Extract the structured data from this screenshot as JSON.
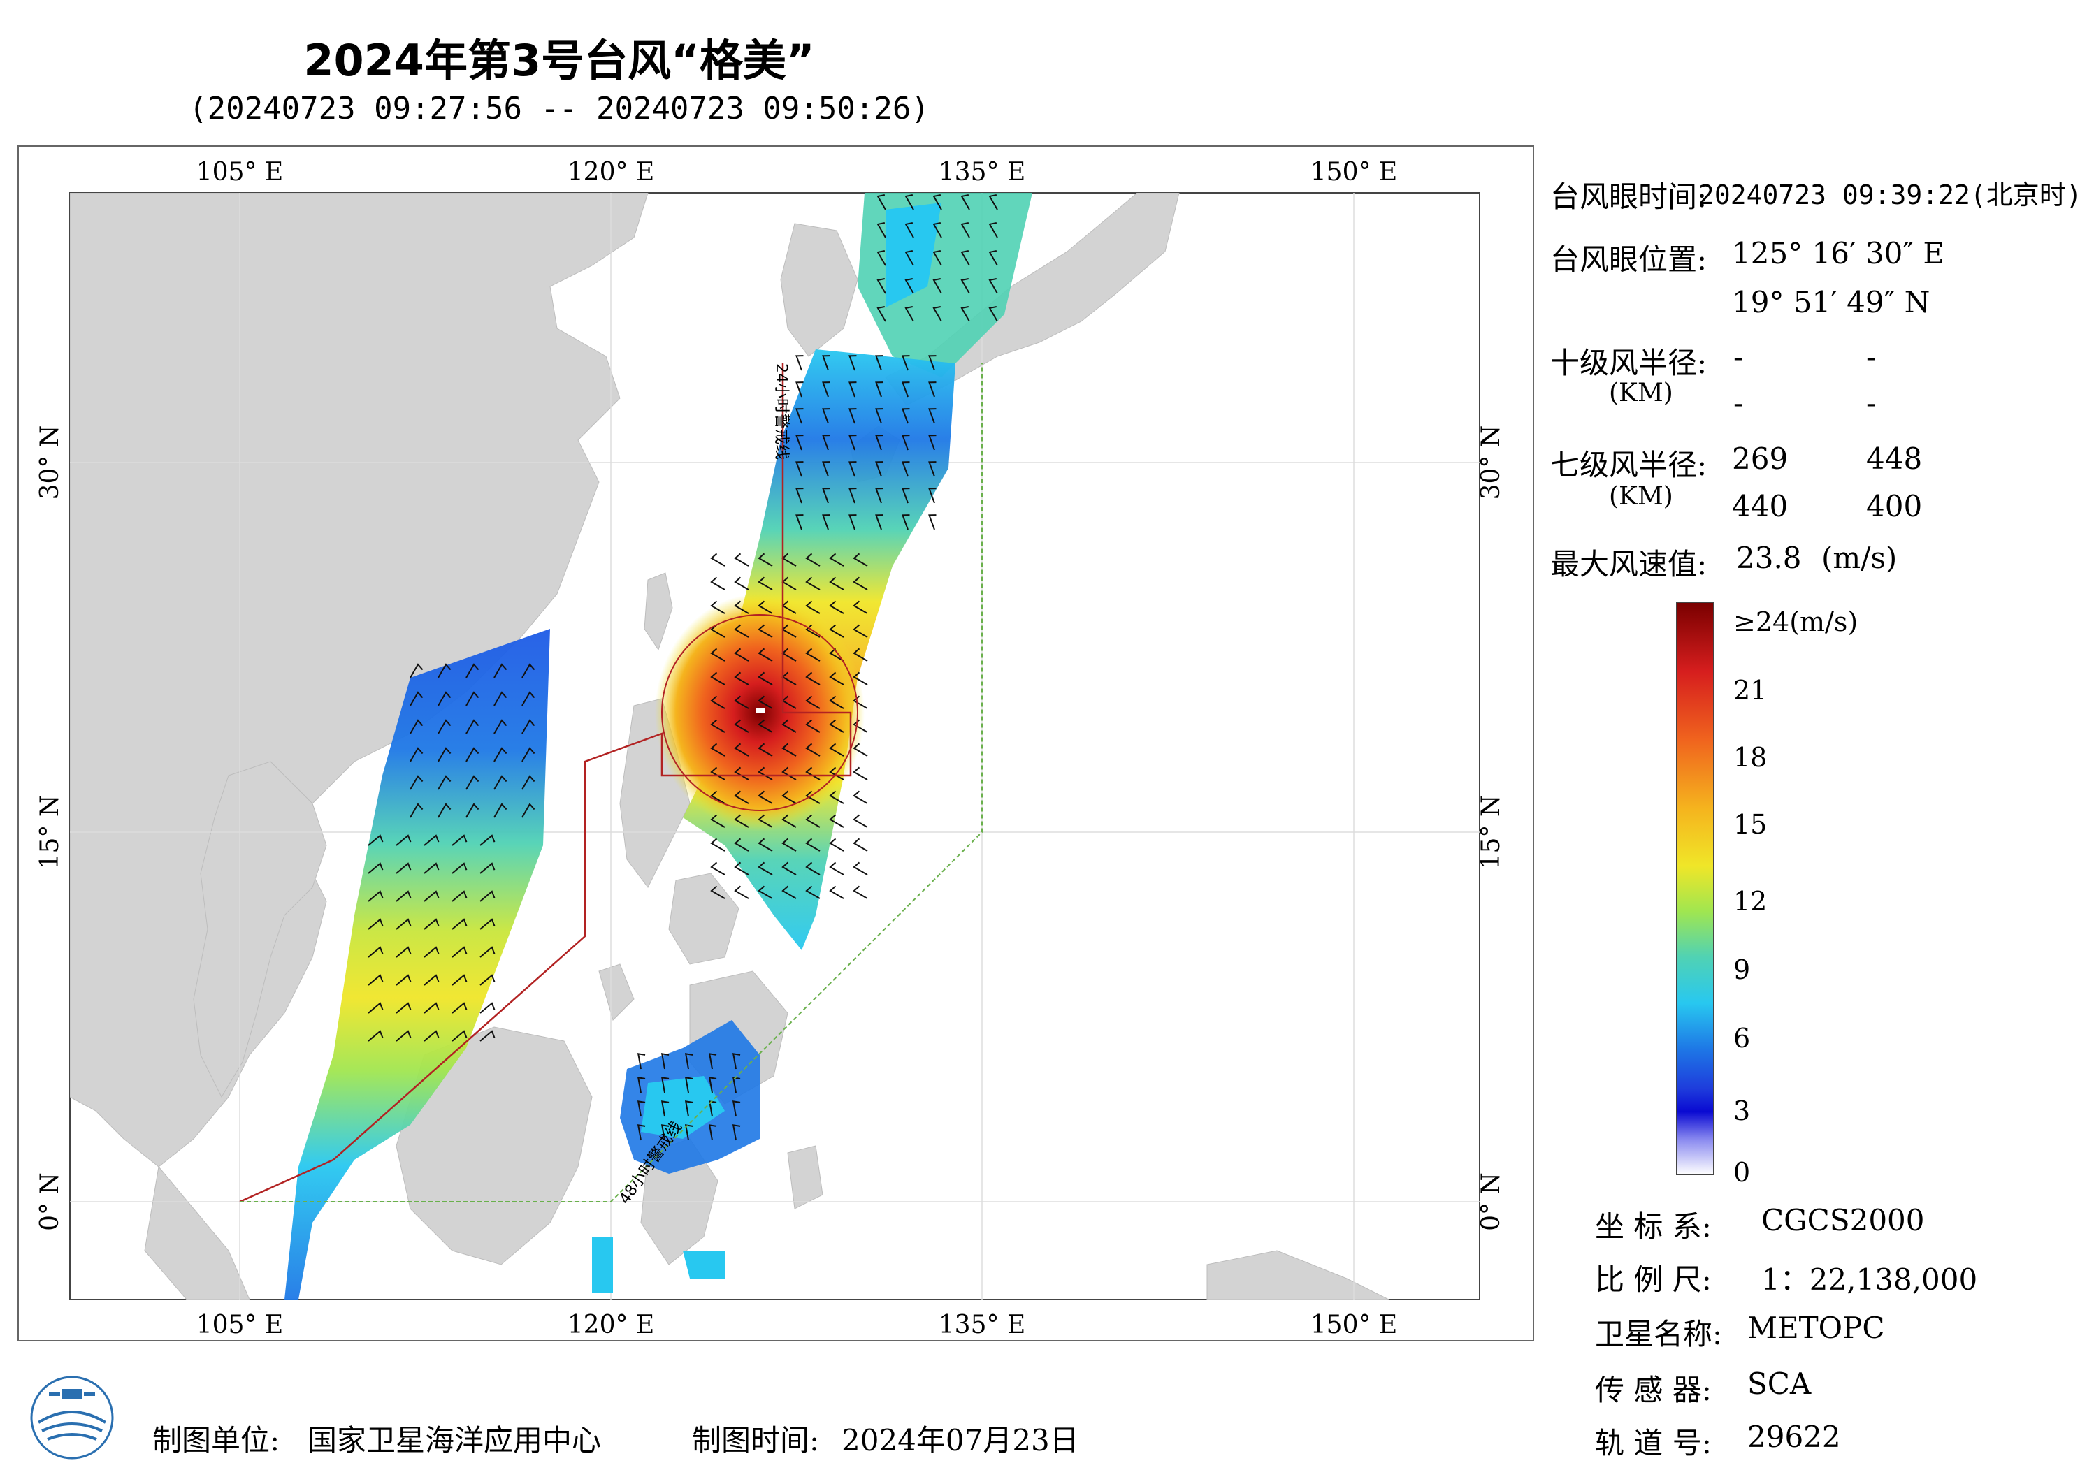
{
  "header": {
    "title": "2024年第3号台风“格美”",
    "subtitle": "(20240723 09:27:56 -- 20240723 09:50:26)"
  },
  "map": {
    "top_lon_labels": [
      "105° E",
      "120° E",
      "135° E",
      "150° E"
    ],
    "bottom_lon_labels": [
      "105° E",
      "120° E",
      "135° E",
      "150° E"
    ],
    "left_lat_labels": [
      "30° N",
      "15° N",
      "0° N"
    ],
    "right_lat_labels": [
      "30° N",
      "15° N",
      "0° N"
    ],
    "warning_line_24h": "24小时警戒线",
    "warning_line_48h": "48小时警戒线",
    "colors": {
      "land": "#d3d3d3",
      "sea": "#ffffff",
      "warning_24h": "#b22222",
      "warning_48h": "#6ab04c"
    }
  },
  "info_panel": {
    "eye_time_label": "台风眼时间:",
    "eye_time_value": "20240723 09:39:22(北京时)",
    "eye_position_label": "台风眼位置:",
    "eye_lon": "125° 16′ 30″ E",
    "eye_lat": "19° 51′ 49″ N",
    "r10_label": "十级风半径:",
    "km_label": "(KM)",
    "r10_values": [
      "-",
      "-",
      "-",
      "-"
    ],
    "r7_label": "七级风半径:",
    "r7_values": [
      "269",
      "448",
      "440",
      "400"
    ],
    "max_wind_label": "最大风速值:",
    "max_wind_value": "23.8",
    "max_wind_unit": "(m/s)"
  },
  "colorbar": {
    "labels": [
      "≥24(m/s)",
      "21",
      "18",
      "15",
      "12",
      "9",
      "6",
      "3",
      "0"
    ],
    "colors": [
      "#7a0000",
      "#d61e1e",
      "#f0641e",
      "#f5b41e",
      "#f0e628",
      "#a0e650",
      "#50d2b4",
      "#28c8f0",
      "#1e78e6",
      "#1e3cdc",
      "#0a0ad2",
      "#8c8cf0",
      "#ffffff"
    ]
  },
  "meta": {
    "crs_label": "坐 标 系:",
    "crs_value": "CGCS2000",
    "scale_label": "比 例 尺:",
    "scale_value": "1：22,138,000",
    "satellite_label": "卫星名称:",
    "satellite_value": "METOPC",
    "sensor_label": "传 感 器:",
    "sensor_value": "SCA",
    "orbit_label": "轨 道 号:",
    "orbit_value": "29622"
  },
  "footer": {
    "unit_label": "制图单位:",
    "unit_value": "国家卫星海洋应用中心",
    "time_label": "制图时间:",
    "time_value": "2024年07月23日"
  }
}
